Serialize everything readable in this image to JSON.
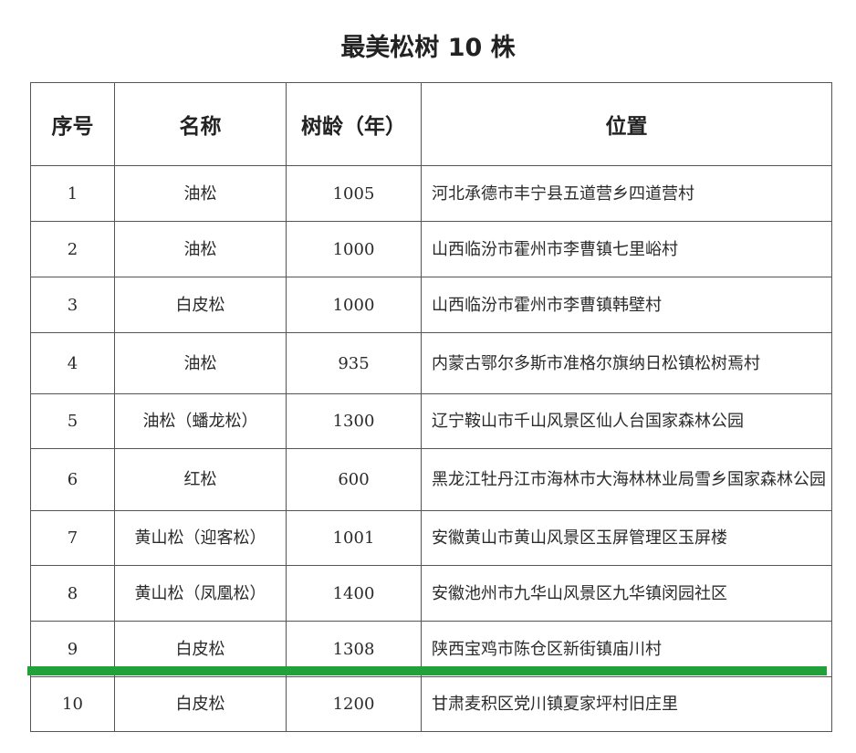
{
  "title": "最美松树 10 株",
  "headers": [
    "序号",
    "名称",
    "树龄（年）",
    "位置"
  ],
  "rows": [
    {
      "no": "1",
      "name": "油松",
      "age": "1005",
      "location": "河北承德市丰宁县五道营乡四道营村"
    },
    {
      "no": "2",
      "name": "油松",
      "age": "1000",
      "location": "山西临汾市霍州市李曹镇七里峪村"
    },
    {
      "no": "3",
      "name": "白皮松",
      "age": "1000",
      "location": "山西临汾市霍州市李曹镇韩壁村"
    },
    {
      "no": "4",
      "name": "油松",
      "age": "935",
      "location": "内蒙古鄂尔多斯市准格尔旗纳日松镇松树焉村"
    },
    {
      "no": "5",
      "name": "油松（蟠龙松）",
      "age": "1300",
      "location": "辽宁鞍山市千山风景区仙人台国家森林公园"
    },
    {
      "no": "6",
      "name": "红松",
      "age": "600",
      "location": "黑龙江牡丹江市海林市大海林林业局雪乡国家森林公园"
    },
    {
      "no": "7",
      "name": "黄山松（迎客松）",
      "age": "1001",
      "location": "安徽黄山市黄山风景区玉屏管理区玉屏楼"
    },
    {
      "no": "8",
      "name": "黄山松（凤凰松）",
      "age": "1400",
      "location": "安徽池州市九华山风景区九华镇闵园社区"
    },
    {
      "no": "9",
      "name": "白皮松",
      "age": "1308",
      "location": "陕西宝鸡市陈仓区新街镇庙川村"
    },
    {
      "no": "10",
      "name": "白皮松",
      "age": "1200",
      "location": "甘肃麦积区党川镇夏家坪村旧庄里"
    }
  ],
  "colors": {
    "highlight_line": "#22a03a",
    "border": "#555555"
  }
}
